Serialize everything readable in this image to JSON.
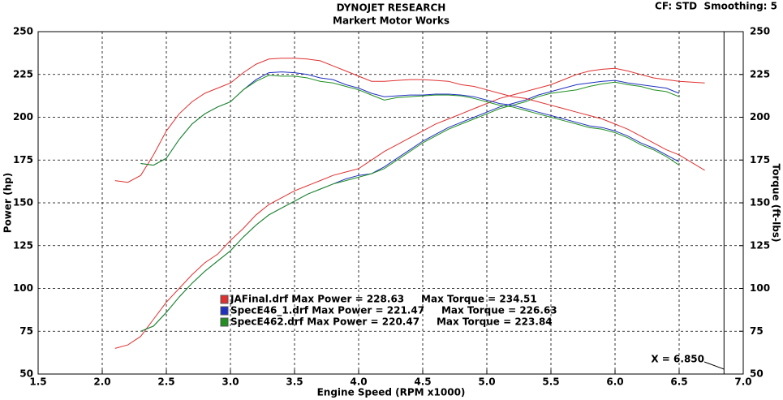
{
  "chart_data": {
    "type": "line",
    "title": "DYNOJET RESEARCH",
    "subtitle": "Markert Motor Works",
    "corner_note": "CF: STD  Smoothing: 5",
    "x_label": "Engine Speed (RPM x1000)",
    "y_label": "Power (hp)",
    "y2_label": "Torque (ft-lbs)",
    "xlim": [
      1.5,
      7.0
    ],
    "xticks": [
      1.5,
      {
        "value": 2,
        "label": "2.0"
      },
      2.5,
      {
        "value": 3,
        "label": "3.0"
      },
      3.5,
      {
        "value": 4,
        "label": "4.0"
      },
      4.5,
      {
        "value": 5,
        "label": "5.0"
      },
      5.5,
      {
        "value": 6,
        "label": "6.0"
      },
      6.5,
      {
        "value": 7,
        "label": "7.0"
      }
    ],
    "ylim": [
      50,
      250
    ],
    "yticks": [
      50,
      75,
      100,
      125,
      150,
      175,
      200,
      225,
      250
    ],
    "y2lim": [
      50,
      250
    ],
    "y2ticks": [
      50,
      75,
      100,
      125,
      150,
      175,
      200,
      225,
      250
    ],
    "grid": true,
    "cursor": {
      "value": 6.85,
      "label": "X = 6.850"
    },
    "x": [
      2.1,
      2.2,
      2.3,
      2.4,
      2.5,
      2.6,
      2.7,
      2.8,
      2.9,
      3.0,
      3.1,
      3.2,
      3.3,
      3.4,
      3.5,
      3.6,
      3.7,
      3.8,
      3.9,
      4.0,
      4.1,
      4.2,
      4.3,
      4.4,
      4.5,
      4.6,
      4.7,
      4.8,
      4.9,
      5.0,
      5.1,
      5.2,
      5.3,
      5.4,
      5.5,
      5.6,
      5.7,
      5.8,
      5.9,
      6.0,
      6.1,
      6.2,
      6.3,
      6.4,
      6.5,
      6.7
    ],
    "series": [
      {
        "color": "#e03030",
        "values": [
          65,
          67,
          72,
          82,
          92,
          100,
          108,
          115,
          120,
          128,
          135,
          143,
          149,
          153,
          157,
          160,
          163,
          166,
          168,
          170,
          175,
          180,
          184,
          188,
          192,
          196,
          199,
          202,
          205,
          208,
          211,
          213,
          215,
          217,
          219,
          222,
          225,
          227,
          228,
          228.6,
          227,
          225,
          223,
          222,
          221,
          220
        ]
      },
      {
        "color": "#2030c0",
        "values": [
          null,
          null,
          75,
          78,
          86,
          95,
          103,
          110,
          116,
          122,
          130,
          137,
          143,
          147,
          151,
          155,
          158,
          161,
          164,
          166,
          167,
          171,
          176,
          181,
          186,
          190,
          194,
          197,
          200,
          203,
          206,
          208,
          210,
          213,
          215,
          217,
          219,
          220,
          221,
          221.5,
          220,
          219,
          218,
          217,
          214,
          null
        ]
      },
      {
        "color": "#209020",
        "values": [
          null,
          null,
          75,
          78,
          86,
          95,
          103,
          110,
          116,
          122,
          130,
          137,
          143,
          147,
          151,
          155,
          158,
          161,
          163,
          165,
          167,
          170,
          175,
          180,
          185,
          189,
          193,
          196,
          199,
          202,
          205,
          207,
          209,
          212,
          214,
          215,
          216,
          218,
          219.5,
          220.5,
          219,
          218,
          216,
          215,
          212,
          null
        ]
      },
      {
        "color": "#e03030",
        "axis": "y2",
        "values": [
          163,
          162,
          166,
          178,
          192,
          202,
          209,
          214,
          217,
          220,
          226,
          231,
          234,
          234.5,
          234.5,
          234,
          233,
          230,
          227,
          224,
          221,
          221,
          221.5,
          222,
          222,
          221.5,
          221,
          219,
          218,
          216,
          214,
          212,
          211,
          209,
          207,
          205,
          203,
          201,
          199,
          196,
          193,
          189,
          185,
          181,
          178,
          169
        ]
      },
      {
        "color": "#2030c0",
        "axis": "y2",
        "values": [
          null,
          null,
          173,
          172,
          176,
          187,
          196,
          202,
          206,
          209,
          216,
          222,
          226,
          226.5,
          226,
          225,
          223,
          222,
          219,
          217,
          214,
          212,
          212.5,
          213,
          213,
          213.5,
          213.5,
          213,
          212,
          210,
          208,
          207,
          205,
          203,
          201,
          199,
          197,
          195,
          194,
          192,
          189,
          185,
          182,
          178,
          174,
          null
        ]
      },
      {
        "color": "#209020",
        "axis": "y2",
        "values": [
          null,
          null,
          173,
          172,
          176,
          187,
          196,
          202,
          206,
          209,
          216,
          221,
          224.5,
          224,
          224,
          223,
          221,
          220,
          218,
          216,
          213,
          210,
          211.5,
          212,
          212.5,
          213,
          213,
          212.5,
          211,
          209,
          207,
          206,
          204,
          202,
          200,
          198,
          196,
          194,
          193,
          191,
          188,
          184,
          181,
          177,
          172,
          null
        ]
      }
    ],
    "legend_entries": [
      {
        "color": "#e03030",
        "text": "JAFinal.drf Max Power = 228.63     Max Torque = 234.51"
      },
      {
        "color": "#2030c0",
        "text": "SpecE46_1.drf Max Power = 221.47     Max Torque = 226.63"
      },
      {
        "color": "#209020",
        "text": "SpecE462.drf Max Power = 220.47     Max Torque = 223.84"
      }
    ]
  }
}
